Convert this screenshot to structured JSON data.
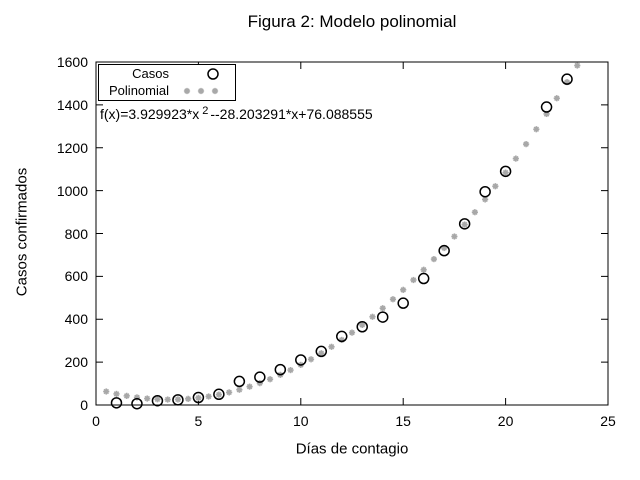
{
  "title": "Figura 2: Modelo polinomial",
  "formula": {
    "prefix": "f(x)=3.929923*x",
    "sup": "2",
    "rest": "--28.203291*x+76.088555"
  },
  "legend": {
    "items": [
      {
        "label": "Casos",
        "marker": "open-circle"
      },
      {
        "label": "Polinomial",
        "marker": "gray-asterisk-dots"
      }
    ]
  },
  "colors": {
    "foreground": "#000000",
    "polinomial": "#a8a8a8",
    "background": "#ffffff"
  },
  "chart_data": {
    "type": "scatter",
    "title": "Figura 2: Modelo polinomial",
    "xlabel": "Días de contagio",
    "ylabel": "Casos confirmados",
    "xlim": [
      0,
      25
    ],
    "ylim": [
      0,
      1600
    ],
    "xticks": [
      0,
      5,
      10,
      15,
      20,
      25
    ],
    "yticks": [
      0,
      200,
      400,
      600,
      800,
      1000,
      1200,
      1400,
      1600
    ],
    "grid": false,
    "legend_position": "top-left-inside",
    "series": [
      {
        "name": "Casos",
        "type": "scatter",
        "marker": "open-circle",
        "color": "#000000",
        "x": [
          1,
          2,
          3,
          4,
          5,
          6,
          7,
          8,
          9,
          10,
          11,
          12,
          13,
          14,
          15,
          16,
          17,
          18,
          19,
          20,
          22,
          23
        ],
        "y": [
          10,
          6,
          20,
          24,
          35,
          50,
          110,
          130,
          165,
          210,
          250,
          320,
          365,
          410,
          475,
          590,
          720,
          845,
          995,
          1090,
          1390,
          1520
        ]
      },
      {
        "name": "Polinomial",
        "type": "function-points",
        "marker": "gray-asterisk-dot",
        "color": "#a8a8a8",
        "coefficients": {
          "a": 3.929923,
          "b": -28.203291,
          "c": 76.088555
        },
        "x_start": 0.5,
        "x_end": 23.5,
        "x_step": 0.5
      }
    ]
  }
}
